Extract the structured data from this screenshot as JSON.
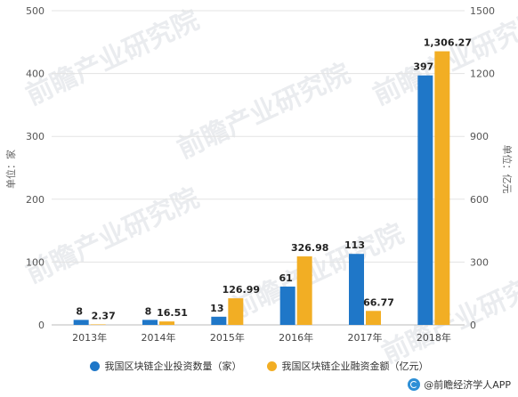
{
  "chart_data": {
    "type": "bar",
    "categories": [
      "2013年",
      "2014年",
      "2015年",
      "2016年",
      "2017年",
      "2018年"
    ],
    "series": [
      {
        "name": "我国区块链企业投资数量（家）",
        "axis": "left",
        "color": "#1f77c8",
        "values": [
          8,
          8,
          13,
          61,
          113,
          397
        ],
        "labels": [
          "8",
          "8",
          "13",
          "61",
          "113",
          "397"
        ]
      },
      {
        "name": "我国区块链企业融资金额（亿元）",
        "axis": "right",
        "color": "#f2ae24",
        "values": [
          2.37,
          16.51,
          126.99,
          326.98,
          66.77,
          1306.27
        ],
        "labels": [
          "2.37",
          "16.51",
          "126.99",
          "326.98",
          "66.77",
          "1,306.27"
        ]
      }
    ],
    "ylabel": "单位：家",
    "ylabel_right": "单位：亿元",
    "ylim": [
      0,
      500
    ],
    "ylim_right": [
      0,
      1500
    ],
    "yticks": [
      "0",
      "100",
      "200",
      "300",
      "400",
      "500"
    ],
    "yticks_right": [
      "0",
      "300",
      "600",
      "900",
      "1200",
      "1500"
    ],
    "grid": true,
    "legend_position": "bottom"
  },
  "watermark": "前瞻产业研究院",
  "footer": "@前瞻经济学人APP"
}
